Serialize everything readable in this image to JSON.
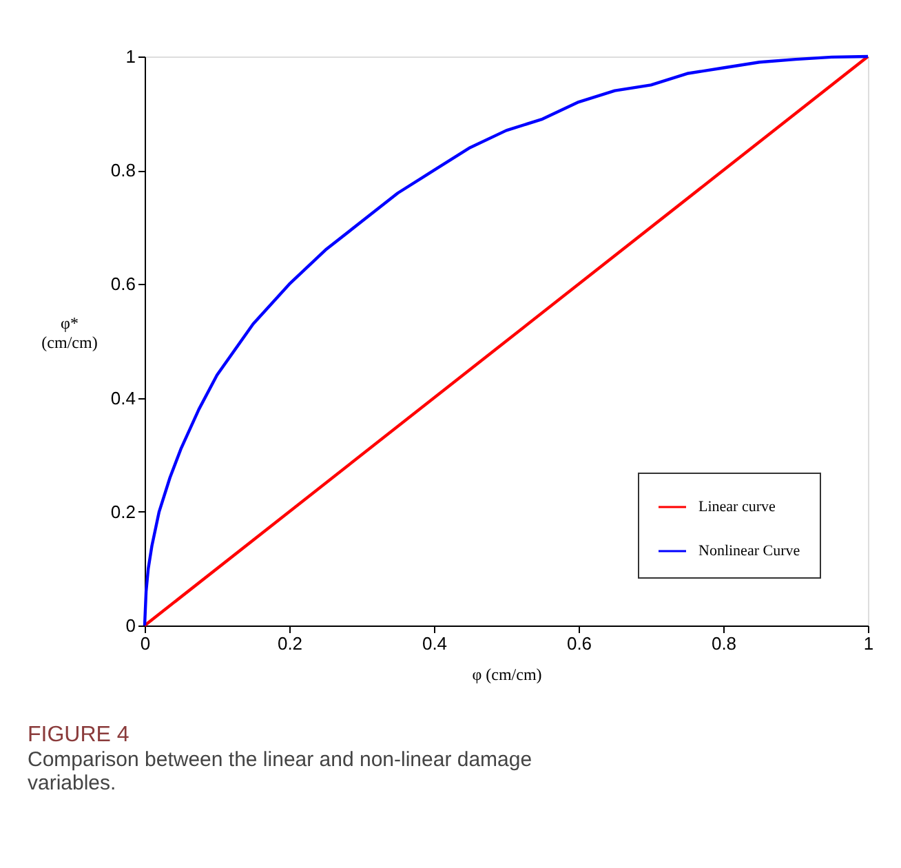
{
  "chart_data": {
    "type": "line",
    "title": "FIGURE 4",
    "xlabel": "φ (cm/cm)",
    "ylabel": "φ*\n(cm/cm)",
    "annotations": [
      "Comparison between the linear and non-linear damage variables."
    ],
    "xlim": [
      0,
      1
    ],
    "ylim": [
      0,
      1
    ],
    "xticks": [
      0,
      0.2,
      0.4,
      0.6,
      0.8,
      1
    ],
    "yticks": [
      0,
      0.2,
      0.4,
      0.6,
      0.8,
      1
    ],
    "grid": false,
    "legend": "bottom right",
    "line_style": "solid",
    "marker": "none",
    "series": [
      {
        "name": "Linear curve",
        "color": "#ff0000",
        "x": [
          0,
          1
        ],
        "values": [
          0,
          1
        ]
      },
      {
        "name": "Nonlinear Curve",
        "color": "#0000ff",
        "x": [
          0,
          0.002,
          0.005,
          0.01,
          0.02,
          0.035,
          0.05,
          0.075,
          0.1,
          0.15,
          0.2,
          0.25,
          0.3,
          0.35,
          0.4,
          0.45,
          0.5,
          0.55,
          0.6,
          0.65,
          0.7,
          0.75,
          0.8,
          0.85,
          0.9,
          0.95,
          1
        ],
        "values": [
          0,
          0.06,
          0.1,
          0.14,
          0.2,
          0.26,
          0.31,
          0.38,
          0.44,
          0.53,
          0.6,
          0.66,
          0.71,
          0.76,
          0.8,
          0.84,
          0.87,
          0.89,
          0.92,
          0.94,
          0.95,
          0.97,
          0.98,
          0.99,
          0.995,
          0.999,
          1
        ]
      }
    ]
  }
}
